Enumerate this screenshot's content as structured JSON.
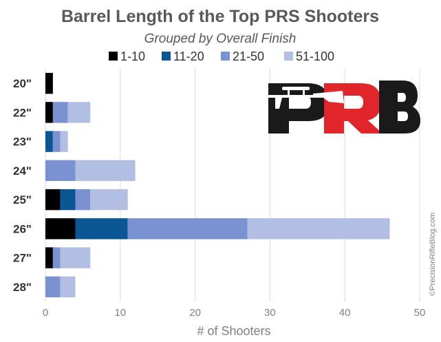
{
  "chart_data": {
    "type": "bar",
    "orientation": "horizontal",
    "stacked": true,
    "title": "Barrel Length of the Top PRS Shooters",
    "subtitle": "Grouped by Overall Finish",
    "xlabel": "# of Shooters",
    "ylabel": "",
    "xlim": [
      0,
      50
    ],
    "xticks": [
      "0",
      "10",
      "20",
      "30",
      "40",
      "50"
    ],
    "grid": true,
    "legend_position": "top",
    "categories": [
      "20\"",
      "22\"",
      "23\"",
      "24\"",
      "25\"",
      "26\"",
      "27\"",
      "28\""
    ],
    "series": [
      {
        "name": "1-10",
        "color": "#000000",
        "values": [
          1,
          1,
          0,
          0,
          2,
          4,
          1,
          0
        ]
      },
      {
        "name": "11-20",
        "color": "#0a5594",
        "values": [
          0,
          0,
          1,
          0,
          2,
          7,
          0,
          0
        ]
      },
      {
        "name": "21-50",
        "color": "#7a92d2",
        "values": [
          0,
          2,
          1,
          4,
          2,
          16,
          1,
          2
        ]
      },
      {
        "name": "51-100",
        "color": "#b3bfe2",
        "values": [
          0,
          3,
          1,
          8,
          5,
          19,
          4,
          2
        ]
      }
    ]
  },
  "logo": {
    "text": "PRB",
    "colors": {
      "dark": "#1a1a1a",
      "accent": "#e0262b"
    }
  },
  "watermark": "©PrecisionRifleBlog.com"
}
